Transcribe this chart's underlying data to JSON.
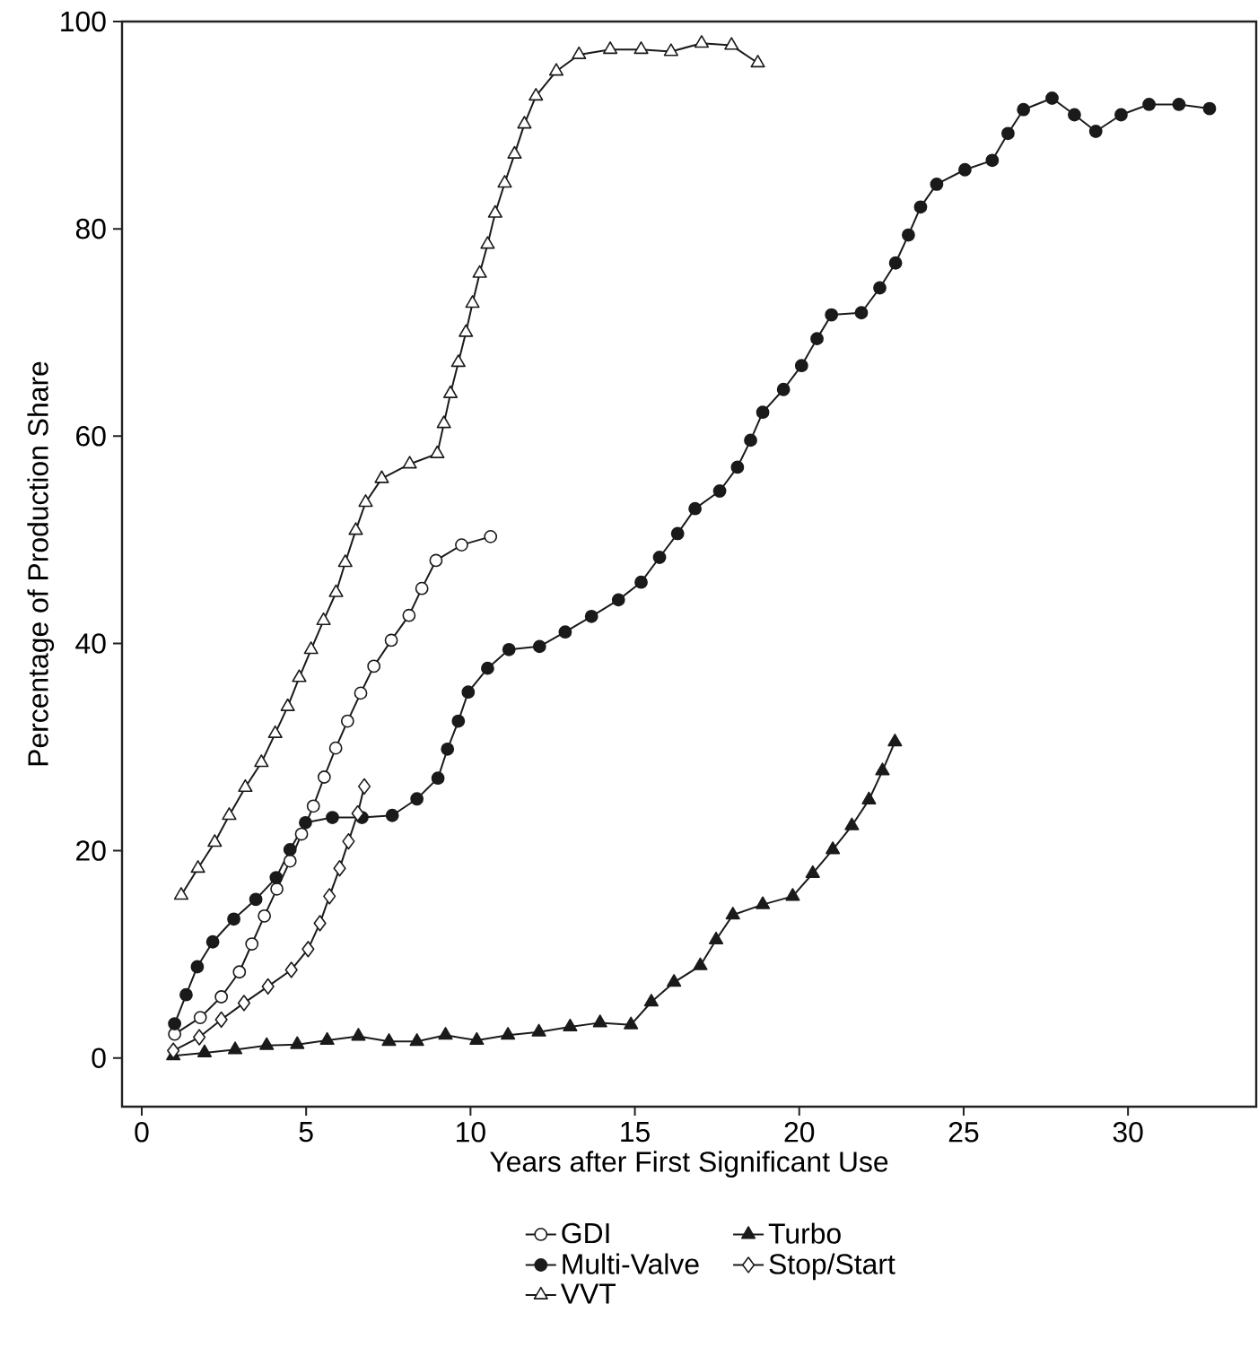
{
  "chart_data": {
    "type": "line",
    "xlabel": "Years after First Significant Use",
    "ylabel": "Percentage of Production Share",
    "xlim": [
      -0.6,
      33.9
    ],
    "ylim": [
      -4.7,
      100
    ],
    "xticks": [
      0,
      5,
      10,
      15,
      20,
      25,
      30
    ],
    "yticks": [
      0,
      20,
      40,
      60,
      80,
      100
    ],
    "grid": false,
    "legend": "bottom",
    "line_style": "solid",
    "series": [
      {
        "name": "GDI",
        "color": "#ffffff",
        "marker": "circle",
        "x": [
          1.0,
          1.78,
          2.42,
          2.97,
          3.35,
          3.73,
          4.11,
          4.51,
          4.86,
          5.22,
          5.55,
          5.9,
          6.26,
          6.66,
          7.06,
          7.59,
          8.13,
          8.52,
          8.95,
          9.73,
          10.61
        ],
        "values": [
          2.3,
          3.9,
          5.9,
          8.3,
          11.0,
          13.7,
          16.3,
          19.0,
          21.6,
          24.3,
          27.1,
          29.9,
          32.5,
          35.2,
          37.8,
          40.3,
          42.7,
          45.3,
          48.0,
          49.5,
          50.3
        ]
      },
      {
        "name": "Turbo",
        "color": "#1a1a1a",
        "marker": "triangle",
        "x": [
          0.96,
          1.91,
          2.84,
          3.8,
          4.73,
          5.64,
          6.59,
          7.52,
          8.37,
          9.24,
          10.19,
          11.14,
          12.08,
          13.03,
          13.94,
          14.88,
          15.5,
          16.19,
          16.99,
          17.47,
          17.98,
          18.89,
          19.8,
          20.41,
          21.02,
          21.6,
          22.12,
          22.53,
          22.91
        ],
        "values": [
          0.2,
          0.5,
          0.8,
          1.2,
          1.3,
          1.7,
          2.1,
          1.6,
          1.6,
          2.2,
          1.7,
          2.2,
          2.5,
          3.0,
          3.4,
          3.2,
          5.4,
          7.3,
          8.9,
          11.4,
          13.8,
          14.8,
          15.6,
          17.8,
          20.1,
          22.4,
          24.9,
          27.7,
          30.5
        ]
      },
      {
        "name": "Multi-Valve",
        "color": "#1a1a1a",
        "marker": "circle",
        "x": [
          1.0,
          1.35,
          1.69,
          2.16,
          2.8,
          3.47,
          4.09,
          4.51,
          4.98,
          5.8,
          6.7,
          7.62,
          8.37,
          9.01,
          9.3,
          9.63,
          9.93,
          10.52,
          11.17,
          12.1,
          12.88,
          13.68,
          14.5,
          15.19,
          15.75,
          16.3,
          16.83,
          17.58,
          18.12,
          18.52,
          18.89,
          19.52,
          20.07,
          20.54,
          20.98,
          21.89,
          22.45,
          22.93,
          23.32,
          23.69,
          24.18,
          25.04,
          25.87,
          26.35,
          26.82,
          27.69,
          28.37,
          29.02,
          29.79,
          30.64,
          31.55,
          32.48
        ],
        "values": [
          3.3,
          6.1,
          8.8,
          11.2,
          13.4,
          15.3,
          17.4,
          20.1,
          22.7,
          23.2,
          23.2,
          23.4,
          25.0,
          27.0,
          29.8,
          32.5,
          35.3,
          37.6,
          39.4,
          39.7,
          41.1,
          42.6,
          44.2,
          45.9,
          48.3,
          50.6,
          53.0,
          54.7,
          57.0,
          59.6,
          62.3,
          64.5,
          66.8,
          69.4,
          71.7,
          71.9,
          74.3,
          76.7,
          79.4,
          82.1,
          84.3,
          85.7,
          86.6,
          89.2,
          91.5,
          92.6,
          91.0,
          89.4,
          91.0,
          92.0,
          92.0,
          91.6
        ]
      },
      {
        "name": "Stop/Start",
        "color": "#ffffff",
        "marker": "diamond",
        "x": [
          0.96,
          1.75,
          2.42,
          3.11,
          3.84,
          4.55,
          5.06,
          5.42,
          5.71,
          6.02,
          6.29,
          6.57,
          6.77
        ],
        "values": [
          0.7,
          2.0,
          3.7,
          5.3,
          6.9,
          8.5,
          10.5,
          13.0,
          15.6,
          18.3,
          20.9,
          23.6,
          26.2
        ]
      },
      {
        "name": "VVT",
        "color": "#ffffff",
        "marker": "triangle",
        "x": [
          1.2,
          1.71,
          2.22,
          2.66,
          3.15,
          3.64,
          4.06,
          4.44,
          4.79,
          5.15,
          5.53,
          5.91,
          6.19,
          6.51,
          6.81,
          7.3,
          8.15,
          8.99,
          9.19,
          9.39,
          9.63,
          9.86,
          10.06,
          10.28,
          10.52,
          10.75,
          11.04,
          11.34,
          11.64,
          11.99,
          12.61,
          13.3,
          14.25,
          15.19,
          16.1,
          17.03,
          17.94,
          18.74
        ],
        "values": [
          15.7,
          18.3,
          20.8,
          23.4,
          26.1,
          28.5,
          31.3,
          33.9,
          36.7,
          39.4,
          42.2,
          44.9,
          47.8,
          50.9,
          53.6,
          55.9,
          57.3,
          58.3,
          61.2,
          64.1,
          67.1,
          70.0,
          72.8,
          75.7,
          78.5,
          81.5,
          84.4,
          87.2,
          90.1,
          92.8,
          95.2,
          96.8,
          97.3,
          97.3,
          97.1,
          97.9,
          97.7,
          96.0
        ]
      }
    ]
  }
}
